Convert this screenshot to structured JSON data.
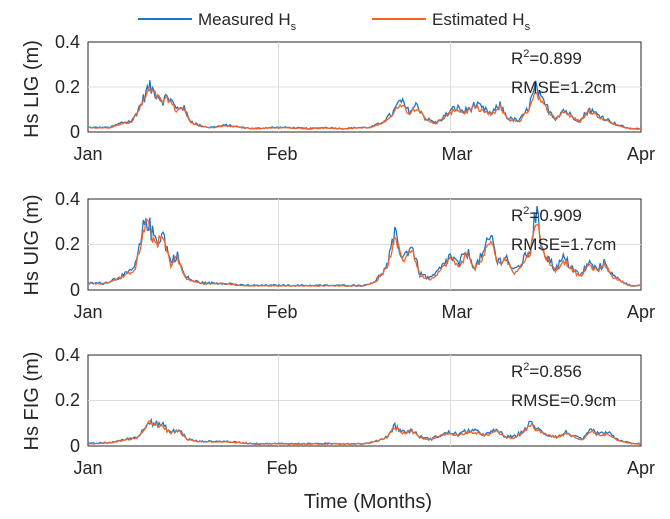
{
  "chart_data": {
    "type": "line",
    "x_axis": {
      "label": "Time (Months)",
      "ticks": [
        "Jan",
        "Feb",
        "Mar",
        "Apr"
      ],
      "range": [
        "Jan 1",
        "Apr 1"
      ]
    },
    "y_axis": {
      "range": [
        0,
        0.4
      ],
      "ticks": [
        "0",
        "0.2",
        "0.4"
      ]
    },
    "legend": {
      "position": "top",
      "entries": [
        {
          "name": "Measured H",
          "subscript": "s",
          "color": "#1f77c4"
        },
        {
          "name": "Estimated H",
          "subscript": "s",
          "color": "#f0642a"
        }
      ]
    },
    "grid": true,
    "panels": [
      {
        "ylabel": "Hs LIG (m)",
        "r2_label": "R",
        "r2_sup": "2",
        "r2_value": "=0.899",
        "rmse": "RMSE=1.2cm",
        "keypoints": [
          [
            0,
            0.02
          ],
          [
            0.04,
            0.02
          ],
          [
            0.06,
            0.04
          ],
          [
            0.08,
            0.05
          ],
          [
            0.095,
            0.12
          ],
          [
            0.11,
            0.2
          ],
          [
            0.125,
            0.17
          ],
          [
            0.135,
            0.14
          ],
          [
            0.145,
            0.16
          ],
          [
            0.16,
            0.1
          ],
          [
            0.17,
            0.12
          ],
          [
            0.185,
            0.05
          ],
          [
            0.2,
            0.03
          ],
          [
            0.22,
            0.02
          ],
          [
            0.25,
            0.03
          ],
          [
            0.28,
            0.02
          ],
          [
            0.3,
            0.015
          ],
          [
            0.33,
            0.02
          ],
          [
            0.36,
            0.02
          ],
          [
            0.4,
            0.015
          ],
          [
            0.43,
            0.02
          ],
          [
            0.46,
            0.015
          ],
          [
            0.49,
            0.02
          ],
          [
            0.51,
            0.02
          ],
          [
            0.53,
            0.04
          ],
          [
            0.55,
            0.08
          ],
          [
            0.565,
            0.14
          ],
          [
            0.58,
            0.09
          ],
          [
            0.595,
            0.12
          ],
          [
            0.61,
            0.06
          ],
          [
            0.63,
            0.04
          ],
          [
            0.65,
            0.08
          ],
          [
            0.665,
            0.11
          ],
          [
            0.68,
            0.09
          ],
          [
            0.7,
            0.12
          ],
          [
            0.715,
            0.1
          ],
          [
            0.73,
            0.08
          ],
          [
            0.745,
            0.12
          ],
          [
            0.76,
            0.06
          ],
          [
            0.78,
            0.05
          ],
          [
            0.795,
            0.1
          ],
          [
            0.81,
            0.2
          ],
          [
            0.82,
            0.14
          ],
          [
            0.83,
            0.11
          ],
          [
            0.845,
            0.06
          ],
          [
            0.86,
            0.1
          ],
          [
            0.875,
            0.07
          ],
          [
            0.89,
            0.05
          ],
          [
            0.905,
            0.1
          ],
          [
            0.92,
            0.08
          ],
          [
            0.935,
            0.06
          ],
          [
            0.95,
            0.04
          ],
          [
            0.96,
            0.03
          ],
          [
            0.98,
            0.015
          ],
          [
            1,
            0.015
          ]
        ]
      },
      {
        "ylabel": "Hs UIG (m)",
        "r2_label": "R",
        "r2_sup": "2",
        "r2_value": "=0.909",
        "rmse": "RMSE=1.7cm",
        "keypoints": [
          [
            0,
            0.03
          ],
          [
            0.03,
            0.03
          ],
          [
            0.05,
            0.05
          ],
          [
            0.07,
            0.07
          ],
          [
            0.085,
            0.1
          ],
          [
            0.095,
            0.2
          ],
          [
            0.105,
            0.33
          ],
          [
            0.115,
            0.25
          ],
          [
            0.125,
            0.22
          ],
          [
            0.135,
            0.25
          ],
          [
            0.15,
            0.12
          ],
          [
            0.16,
            0.16
          ],
          [
            0.175,
            0.06
          ],
          [
            0.19,
            0.04
          ],
          [
            0.21,
            0.03
          ],
          [
            0.25,
            0.03
          ],
          [
            0.28,
            0.02
          ],
          [
            0.32,
            0.02
          ],
          [
            0.36,
            0.02
          ],
          [
            0.4,
            0.02
          ],
          [
            0.43,
            0.02
          ],
          [
            0.46,
            0.02
          ],
          [
            0.5,
            0.02
          ],
          [
            0.52,
            0.04
          ],
          [
            0.54,
            0.1
          ],
          [
            0.555,
            0.24
          ],
          [
            0.57,
            0.14
          ],
          [
            0.585,
            0.2
          ],
          [
            0.6,
            0.07
          ],
          [
            0.62,
            0.05
          ],
          [
            0.64,
            0.1
          ],
          [
            0.655,
            0.15
          ],
          [
            0.67,
            0.11
          ],
          [
            0.685,
            0.17
          ],
          [
            0.7,
            0.1
          ],
          [
            0.715,
            0.16
          ],
          [
            0.73,
            0.24
          ],
          [
            0.74,
            0.12
          ],
          [
            0.755,
            0.15
          ],
          [
            0.77,
            0.08
          ],
          [
            0.785,
            0.12
          ],
          [
            0.8,
            0.18
          ],
          [
            0.81,
            0.35
          ],
          [
            0.82,
            0.2
          ],
          [
            0.83,
            0.15
          ],
          [
            0.845,
            0.09
          ],
          [
            0.86,
            0.14
          ],
          [
            0.875,
            0.1
          ],
          [
            0.89,
            0.06
          ],
          [
            0.905,
            0.12
          ],
          [
            0.92,
            0.09
          ],
          [
            0.935,
            0.12
          ],
          [
            0.95,
            0.06
          ],
          [
            0.965,
            0.04
          ],
          [
            0.98,
            0.02
          ],
          [
            1,
            0.02
          ]
        ]
      },
      {
        "ylabel": "Hs FIG (m)",
        "r2_label": "R",
        "r2_sup": "2",
        "r2_value": "=0.856",
        "rmse": "RMSE=0.9cm",
        "keypoints": [
          [
            0,
            0.01
          ],
          [
            0.04,
            0.015
          ],
          [
            0.07,
            0.03
          ],
          [
            0.09,
            0.04
          ],
          [
            0.1,
            0.07
          ],
          [
            0.11,
            0.12
          ],
          [
            0.12,
            0.1
          ],
          [
            0.135,
            0.09
          ],
          [
            0.15,
            0.06
          ],
          [
            0.165,
            0.07
          ],
          [
            0.18,
            0.03
          ],
          [
            0.2,
            0.02
          ],
          [
            0.25,
            0.02
          ],
          [
            0.3,
            0.01
          ],
          [
            0.35,
            0.01
          ],
          [
            0.4,
            0.01
          ],
          [
            0.45,
            0.01
          ],
          [
            0.5,
            0.01
          ],
          [
            0.52,
            0.02
          ],
          [
            0.54,
            0.04
          ],
          [
            0.555,
            0.09
          ],
          [
            0.57,
            0.06
          ],
          [
            0.585,
            0.07
          ],
          [
            0.6,
            0.04
          ],
          [
            0.62,
            0.03
          ],
          [
            0.64,
            0.05
          ],
          [
            0.655,
            0.06
          ],
          [
            0.67,
            0.05
          ],
          [
            0.69,
            0.07
          ],
          [
            0.705,
            0.06
          ],
          [
            0.72,
            0.05
          ],
          [
            0.74,
            0.07
          ],
          [
            0.755,
            0.04
          ],
          [
            0.77,
            0.04
          ],
          [
            0.785,
            0.06
          ],
          [
            0.8,
            0.1
          ],
          [
            0.815,
            0.07
          ],
          [
            0.83,
            0.05
          ],
          [
            0.85,
            0.04
          ],
          [
            0.865,
            0.06
          ],
          [
            0.88,
            0.04
          ],
          [
            0.895,
            0.03
          ],
          [
            0.91,
            0.07
          ],
          [
            0.925,
            0.05
          ],
          [
            0.94,
            0.06
          ],
          [
            0.955,
            0.03
          ],
          [
            0.97,
            0.02
          ],
          [
            0.985,
            0.01
          ],
          [
            1,
            0.01
          ]
        ]
      }
    ]
  }
}
